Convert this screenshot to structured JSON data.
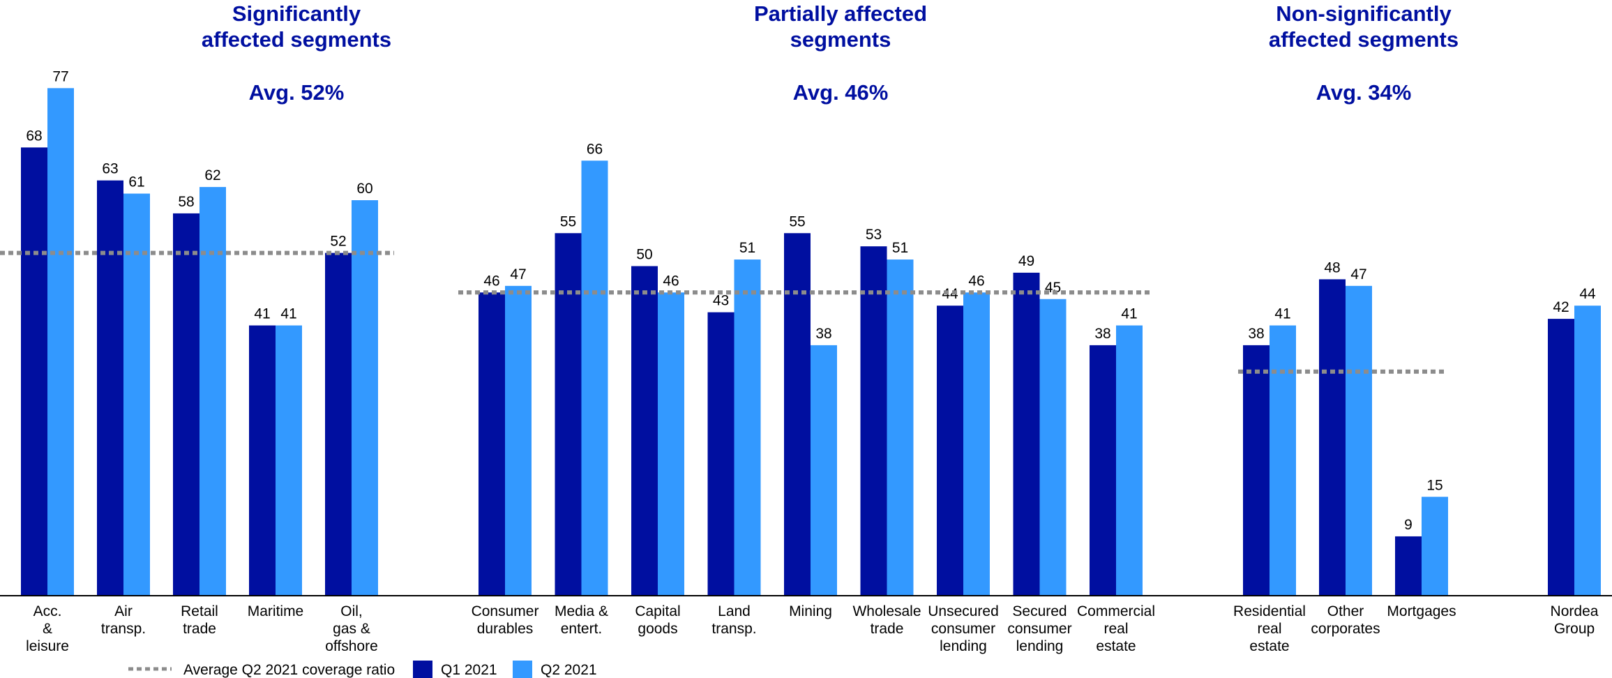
{
  "chart_data": {
    "type": "bar",
    "groups": [
      {
        "title_line1": "Significantly",
        "title_line2": "affected segments",
        "avg_label": "Avg. 52%",
        "average": 52,
        "categories": [
          {
            "label": [
              "Acc.",
              "&",
              "leisure"
            ],
            "q1": 68,
            "q2": 77
          },
          {
            "label": [
              "Air",
              "transp."
            ],
            "q1": 63,
            "q2": 61
          },
          {
            "label": [
              "Retail",
              "trade"
            ],
            "q1": 58,
            "q2": 62
          },
          {
            "label": [
              "Maritime"
            ],
            "q1": 41,
            "q2": 41
          },
          {
            "label": [
              "Oil,",
              "gas &",
              "offshore"
            ],
            "q1": 52,
            "q2": 60
          }
        ]
      },
      {
        "title_line1": "Partially affected",
        "title_line2": "segments",
        "avg_label": "Avg. 46%",
        "average": 46,
        "categories": [
          {
            "label": [
              "Consumer",
              "durables"
            ],
            "q1": 46,
            "q2": 47
          },
          {
            "label": [
              "Media &",
              "entert."
            ],
            "q1": 55,
            "q2": 66
          },
          {
            "label": [
              "Capital",
              "goods"
            ],
            "q1": 50,
            "q2": 46
          },
          {
            "label": [
              "Land",
              "transp."
            ],
            "q1": 43,
            "q2": 51
          },
          {
            "label": [
              "Mining"
            ],
            "q1": 55,
            "q2": 38
          },
          {
            "label": [
              "Wholesale",
              "trade"
            ],
            "q1": 53,
            "q2": 51
          },
          {
            "label": [
              "Unsecured",
              "consumer",
              "lending"
            ],
            "q1": 44,
            "q2": 46
          },
          {
            "label": [
              "Secured",
              "consumer",
              "lending"
            ],
            "q1": 49,
            "q2": 45
          },
          {
            "label": [
              "Commercial",
              "real",
              "estate"
            ],
            "q1": 38,
            "q2": 41
          }
        ]
      },
      {
        "title_line1": "Non-significantly",
        "title_line2": "affected segments",
        "avg_label": "Avg. 34%",
        "average": 34,
        "categories": [
          {
            "label": [
              "Residential",
              "real",
              "estate"
            ],
            "q1": 38,
            "q2": 41
          },
          {
            "label": [
              "Other",
              "corporates"
            ],
            "q1": 48,
            "q2": 47
          },
          {
            "label": [
              "Mortgages"
            ],
            "q1": 9,
            "q2": 15
          }
        ]
      },
      {
        "title_line1": "",
        "title_line2": "",
        "avg_label": "",
        "average": null,
        "categories": [
          {
            "label": [
              "Nordea",
              "Group"
            ],
            "q1": 42,
            "q2": 44
          }
        ]
      }
    ],
    "series": [
      {
        "name": "Q1 2021",
        "color": "#000fa0"
      },
      {
        "name": "Q2 2021",
        "color": "#3399ff"
      }
    ],
    "average_line": {
      "name": "Average Q2 2021 coverage ratio",
      "color": "#8c8c8c"
    },
    "ylim": [
      0,
      100
    ],
    "grid": false,
    "legend_position": "bottom-left"
  }
}
